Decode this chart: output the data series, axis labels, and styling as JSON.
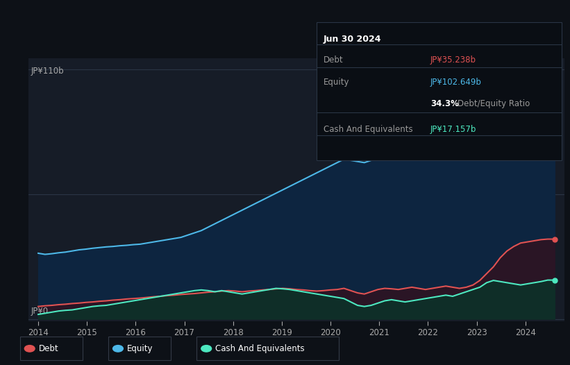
{
  "bg_color": "#0d1117",
  "plot_area_color": "#161c27",
  "title_date": "Jun 30 2024",
  "tooltip": {
    "debt_label": "Debt",
    "debt_value": "JP¥35.238b",
    "equity_label": "Equity",
    "equity_value": "JP¥102.649b",
    "ratio_value": "34.3%",
    "ratio_label": " Debt/Equity Ratio",
    "cash_label": "Cash And Equivalents",
    "cash_value": "JP¥17.157b"
  },
  "ylabel_top": "JP¥110b",
  "ylabel_bottom": "JP¥0",
  "x_ticks": [
    2014,
    2015,
    2016,
    2017,
    2018,
    2019,
    2020,
    2021,
    2022,
    2023,
    2024
  ],
  "legend": [
    {
      "label": "Debt",
      "color": "#e05252"
    },
    {
      "label": "Equity",
      "color": "#4db8e8"
    },
    {
      "label": "Cash And Equivalents",
      "color": "#4de8c0"
    }
  ],
  "debt_color": "#e05252",
  "equity_color": "#4db8e8",
  "cash_color": "#4de8c0",
  "equity_data": [
    29.0,
    28.5,
    28.8,
    29.2,
    29.5,
    30.0,
    30.5,
    30.8,
    31.2,
    31.5,
    31.8,
    32.0,
    32.3,
    32.5,
    32.8,
    33.0,
    33.5,
    34.0,
    34.5,
    35.0,
    35.5,
    36.0,
    37.0,
    38.0,
    39.0,
    40.5,
    42.0,
    43.5,
    45.0,
    46.5,
    48.0,
    49.5,
    51.0,
    52.5,
    54.0,
    55.5,
    57.0,
    58.5,
    60.0,
    61.5,
    63.0,
    64.5,
    66.0,
    67.5,
    69.0,
    70.5,
    70.0,
    69.5,
    69.0,
    70.0,
    71.0,
    72.0,
    73.0,
    74.0,
    75.0,
    76.0,
    77.0,
    76.5,
    76.0,
    75.5,
    75.0,
    74.5,
    75.0,
    75.5,
    76.0,
    77.0,
    78.0,
    79.0,
    80.0,
    82.0,
    85.0,
    88.0,
    91.0,
    94.0,
    97.0,
    100.0,
    102.649
  ],
  "debt_data": [
    5.5,
    5.8,
    6.0,
    6.3,
    6.5,
    6.8,
    7.0,
    7.3,
    7.5,
    7.8,
    8.0,
    8.3,
    8.5,
    8.8,
    9.0,
    9.2,
    9.5,
    9.8,
    10.0,
    10.3,
    10.5,
    10.8,
    11.0,
    11.2,
    11.5,
    11.8,
    12.0,
    12.3,
    12.5,
    12.3,
    12.0,
    12.3,
    12.5,
    12.8,
    13.0,
    13.3,
    13.5,
    13.3,
    13.0,
    12.8,
    12.5,
    12.3,
    12.5,
    12.8,
    13.0,
    13.5,
    12.5,
    11.5,
    11.0,
    12.0,
    13.0,
    13.5,
    13.3,
    13.0,
    13.5,
    14.0,
    13.5,
    13.0,
    13.5,
    14.0,
    14.5,
    14.0,
    13.5,
    14.0,
    15.0,
    17.0,
    20.0,
    23.0,
    27.0,
    30.0,
    32.0,
    33.5,
    34.0,
    34.5,
    35.0,
    35.238,
    35.238
  ],
  "cash_data": [
    2.0,
    2.5,
    3.0,
    3.5,
    3.8,
    4.0,
    4.5,
    5.0,
    5.5,
    5.8,
    6.0,
    6.5,
    7.0,
    7.5,
    8.0,
    8.5,
    9.0,
    9.5,
    10.0,
    10.5,
    11.0,
    11.5,
    12.0,
    12.5,
    12.8,
    12.5,
    12.0,
    12.5,
    12.0,
    11.5,
    11.0,
    11.5,
    12.0,
    12.5,
    13.0,
    13.5,
    13.3,
    13.0,
    12.5,
    12.0,
    11.5,
    11.0,
    10.5,
    10.0,
    9.5,
    9.0,
    7.5,
    6.0,
    5.5,
    6.0,
    7.0,
    8.0,
    8.5,
    8.0,
    7.5,
    8.0,
    8.5,
    9.0,
    9.5,
    10.0,
    10.5,
    10.0,
    11.0,
    12.0,
    13.0,
    14.0,
    16.0,
    17.0,
    16.5,
    16.0,
    15.5,
    15.0,
    15.5,
    16.0,
    16.5,
    17.157,
    17.157
  ]
}
